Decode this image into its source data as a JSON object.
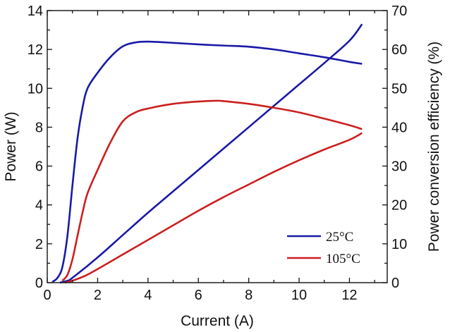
{
  "chart_data": {
    "type": "line",
    "title": "",
    "xlabel": "Current (A)",
    "ylabel": "Power (W)",
    "y2label": "Power conversion efficiency (%)",
    "xlim": [
      0,
      13.5
    ],
    "ylim": [
      0,
      14
    ],
    "y2lim": [
      0,
      70
    ],
    "xticks": [
      "0",
      "2",
      "4",
      "6",
      "8",
      "10",
      "12"
    ],
    "yticks": [
      "0",
      "2",
      "4",
      "6",
      "8",
      "10",
      "12",
      "14"
    ],
    "y2ticks": [
      "0",
      "10",
      "20",
      "30",
      "40",
      "50",
      "60",
      "70"
    ],
    "grid": false,
    "legend_position": "bottom-right",
    "legend": [
      {
        "label": "25°C",
        "color": "#1a1aa6"
      },
      {
        "label": "105°C",
        "color": "#cc1f1f"
      }
    ],
    "series": [
      {
        "name": "25°C",
        "quantity": "power",
        "axis": "left",
        "color": "#1a1aa6",
        "x": [
          0.5,
          0.8,
          1.0,
          2.0,
          3.0,
          4.0,
          5.0,
          6.0,
          7.0,
          8.0,
          9.0,
          10.0,
          11.0,
          12.0,
          12.5
        ],
        "y": [
          0.0,
          0.1,
          0.25,
          1.3,
          2.45,
          3.6,
          4.7,
          5.8,
          6.9,
          8.0,
          9.1,
          10.2,
          11.3,
          12.45,
          13.3
        ]
      },
      {
        "name": "25°C",
        "quantity": "efficiency",
        "axis": "right",
        "color": "#1a1aa6",
        "x": [
          0.2,
          0.4,
          0.6,
          0.8,
          1.0,
          1.2,
          1.4,
          1.6,
          2.0,
          2.5,
          3.0,
          3.5,
          4.0,
          5.0,
          6.0,
          7.0,
          8.0,
          9.0,
          10.0,
          11.0,
          12.0,
          12.5
        ],
        "y": [
          0.2,
          1.2,
          4.0,
          12.0,
          25.0,
          37.0,
          45.0,
          50.0,
          54.0,
          58.0,
          60.8,
          61.8,
          62.0,
          61.7,
          61.3,
          61.0,
          60.7,
          60.0,
          59.0,
          58.0,
          56.8,
          56.3
        ]
      },
      {
        "name": "105°C",
        "quantity": "power",
        "axis": "left",
        "color": "#cc1f1f",
        "x": [
          0.7,
          1.0,
          1.5,
          2.0,
          3.0,
          4.0,
          5.0,
          6.0,
          7.0,
          8.0,
          9.0,
          10.0,
          11.0,
          12.0,
          12.5
        ],
        "y": [
          0.0,
          0.1,
          0.35,
          0.7,
          1.45,
          2.2,
          2.95,
          3.7,
          4.4,
          5.05,
          5.7,
          6.3,
          6.85,
          7.35,
          7.7
        ]
      },
      {
        "name": "105°C",
        "quantity": "efficiency",
        "axis": "right",
        "color": "#cc1f1f",
        "x": [
          0.6,
          0.8,
          1.0,
          1.2,
          1.4,
          1.6,
          2.0,
          2.5,
          3.0,
          3.5,
          4.0,
          5.0,
          6.0,
          6.7,
          7.0,
          8.0,
          9.0,
          10.0,
          11.0,
          12.0,
          12.5
        ],
        "y": [
          0.5,
          2.0,
          6.0,
          12.0,
          18.0,
          23.0,
          29.0,
          36.0,
          41.5,
          43.8,
          44.8,
          46.0,
          46.6,
          46.8,
          46.7,
          46.0,
          45.0,
          43.8,
          42.2,
          40.5,
          39.5
        ]
      }
    ]
  }
}
